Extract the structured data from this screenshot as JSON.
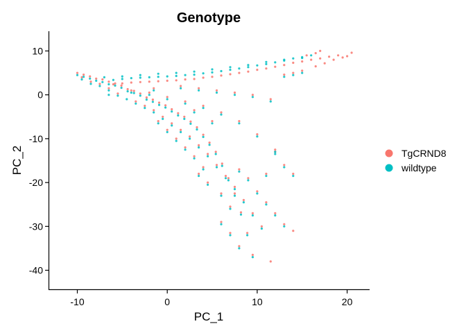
{
  "chart_data": {
    "type": "scatter",
    "title": "Genotype",
    "xlabel": "PC_1",
    "ylabel": "PC_2",
    "xlim": [
      -13.2,
      22.5
    ],
    "ylim": [
      -44.5,
      14.5
    ],
    "xticks": [
      -10,
      0,
      10,
      20
    ],
    "yticks": [
      -40,
      -30,
      -20,
      -10,
      0,
      10
    ],
    "grid": false,
    "legend_position": "right",
    "series": [
      {
        "name": "TgCRND8",
        "color": "#F8766D",
        "points": [
          [
            -10,
            5
          ],
          [
            -9.3,
            4.6
          ],
          [
            -8.6,
            4.2
          ],
          [
            -7.9,
            3.7
          ],
          [
            -7.2,
            3.5
          ],
          [
            -6.5,
            3.0
          ],
          [
            -5.8,
            2.6
          ],
          [
            -5.1,
            2.1
          ],
          [
            -4.4,
            1.3
          ],
          [
            -3.7,
            0.9
          ],
          [
            -3.0,
            0.3
          ],
          [
            -2.3,
            -0.6
          ],
          [
            -1.6,
            -1.1
          ],
          [
            -0.9,
            -1.8
          ],
          [
            -0.2,
            -2.4
          ],
          [
            0.5,
            -3.3
          ],
          [
            1.2,
            -4.2
          ],
          [
            1.9,
            -5.0
          ],
          [
            2.6,
            -6.1
          ],
          [
            3.3,
            -7.4
          ],
          [
            4.0,
            -9.1
          ],
          [
            4.7,
            -10.9
          ],
          [
            5.4,
            -13.0
          ],
          [
            6.1,
            -15.7
          ],
          [
            6.8,
            -19.0
          ],
          [
            7.5,
            -22.5
          ],
          [
            8.2,
            -26.8
          ],
          [
            8.9,
            -31.5
          ],
          [
            -6.0,
            2.4
          ],
          [
            -5.0,
            2.6
          ],
          [
            -4.0,
            2.8
          ],
          [
            -3.0,
            2.9
          ],
          [
            -2.0,
            3.0
          ],
          [
            -1.0,
            3.1
          ],
          [
            0.0,
            3.2
          ],
          [
            1.0,
            3.3
          ],
          [
            2.0,
            3.5
          ],
          [
            3.0,
            3.6
          ],
          [
            4.0,
            3.9
          ],
          [
            5.0,
            4.1
          ],
          [
            6.0,
            4.4
          ],
          [
            7.0,
            4.7
          ],
          [
            8.0,
            5.0
          ],
          [
            9.0,
            5.3
          ],
          [
            10.0,
            5.7
          ],
          [
            11.0,
            6.0
          ],
          [
            12.0,
            6.4
          ],
          [
            13.0,
            6.8
          ],
          [
            14.0,
            7.3
          ],
          [
            15.0,
            7.6
          ],
          [
            16.0,
            8.0
          ],
          [
            17.0,
            8.3
          ],
          [
            18.0,
            8.7
          ],
          [
            19.0,
            9.0
          ],
          [
            20.5,
            9.6
          ],
          [
            -3.5,
            -1.5
          ],
          [
            -2.5,
            -2.5
          ],
          [
            -1.5,
            -3.5
          ],
          [
            -0.5,
            -5.0
          ],
          [
            0.5,
            -6.5
          ],
          [
            1.5,
            -8.0
          ],
          [
            2.5,
            -9.5
          ],
          [
            3.5,
            -11.5
          ],
          [
            4.5,
            -13.5
          ],
          [
            5.5,
            -16.0
          ],
          [
            6.5,
            -18.5
          ],
          [
            7.5,
            -21.0
          ],
          [
            8.5,
            -24.0
          ],
          [
            9.5,
            -27.0
          ],
          [
            10.5,
            -30.0
          ],
          [
            -4.0,
            1.0
          ],
          [
            -2.0,
            0.5
          ],
          [
            0.0,
            -0.5
          ],
          [
            2.0,
            -1.5
          ],
          [
            4.0,
            -2.5
          ],
          [
            6.0,
            -4.0
          ],
          [
            8.0,
            -6.0
          ],
          [
            10.0,
            -9.0
          ],
          [
            12.0,
            -13.0
          ],
          [
            14.0,
            -18.0
          ],
          [
            -5.5,
            0.3
          ],
          [
            -1.5,
            1.5
          ],
          [
            1.5,
            2.0
          ],
          [
            3.5,
            1.5
          ],
          [
            5.5,
            1.0
          ],
          [
            7.5,
            0.5
          ],
          [
            9.5,
            0.0
          ],
          [
            11.5,
            -1.0
          ],
          [
            3.0,
            -3.5
          ],
          [
            5.0,
            -6.0
          ],
          [
            12.0,
            -12.5
          ],
          [
            13.0,
            -16.0
          ],
          [
            6.0,
            -29.0
          ],
          [
            7.0,
            -31.5
          ],
          [
            8.0,
            -34.5
          ],
          [
            9.5,
            -36.5
          ],
          [
            11.5,
            -38.0
          ],
          [
            15.0,
            5.5
          ],
          [
            14.0,
            5.0
          ],
          [
            13.0,
            4.6
          ],
          [
            16.5,
            6.5
          ],
          [
            17.5,
            7.2
          ],
          [
            18.5,
            8.0
          ],
          [
            19.5,
            8.5
          ],
          [
            20.0,
            8.8
          ],
          [
            15.5,
            9.0
          ],
          [
            16.5,
            9.5
          ],
          [
            17.0,
            10.0
          ],
          [
            -8.5,
            3.0
          ],
          [
            -7.5,
            2.5
          ],
          [
            -6.5,
            1.5
          ],
          [
            -9.5,
            4.0
          ],
          [
            2.0,
            -12.0
          ],
          [
            3.0,
            -14.0
          ],
          [
            4.0,
            -16.5
          ],
          [
            0.0,
            -8.0
          ],
          [
            1.0,
            -10.0
          ],
          [
            -1.0,
            -6.0
          ],
          [
            10.0,
            -22.0
          ],
          [
            11.0,
            -24.5
          ],
          [
            12.0,
            -27.0
          ],
          [
            13.0,
            -29.5
          ],
          [
            14.0,
            -31.0
          ],
          [
            7.0,
            -25.5
          ],
          [
            6.0,
            -22.5
          ],
          [
            4.5,
            -20.0
          ],
          [
            3.5,
            -18.0
          ],
          [
            8.0,
            -17.0
          ],
          [
            9.0,
            -19.0
          ],
          [
            11.0,
            -18.0
          ]
        ]
      },
      {
        "name": "wildtype",
        "color": "#00BFC4",
        "points": [
          [
            -10,
            4.5
          ],
          [
            -9.3,
            4.1
          ],
          [
            -8.6,
            3.7
          ],
          [
            -7.9,
            3.2
          ],
          [
            -7.2,
            2.9
          ],
          [
            -6.5,
            2.4
          ],
          [
            -5.8,
            2.1
          ],
          [
            -5.1,
            1.6
          ],
          [
            -4.4,
            0.8
          ],
          [
            -3.7,
            0.4
          ],
          [
            -3.0,
            -0.2
          ],
          [
            -2.3,
            -1.1
          ],
          [
            -1.6,
            -1.6
          ],
          [
            -0.9,
            -2.3
          ],
          [
            -0.2,
            -2.9
          ],
          [
            0.5,
            -3.8
          ],
          [
            1.2,
            -4.7
          ],
          [
            1.9,
            -5.5
          ],
          [
            2.6,
            -6.6
          ],
          [
            3.3,
            -7.9
          ],
          [
            4.0,
            -9.6
          ],
          [
            4.7,
            -11.4
          ],
          [
            5.4,
            -13.5
          ],
          [
            6.1,
            -16.2
          ],
          [
            6.8,
            -19.5
          ],
          [
            7.5,
            -23.0
          ],
          [
            8.2,
            -27.3
          ],
          [
            8.9,
            -32.0
          ],
          [
            -6.0,
            3.4
          ],
          [
            -5.0,
            3.6
          ],
          [
            -4.0,
            3.8
          ],
          [
            -3.0,
            3.9
          ],
          [
            -2.0,
            4.0
          ],
          [
            -1.0,
            4.1
          ],
          [
            0.0,
            4.2
          ],
          [
            1.0,
            4.3
          ],
          [
            2.0,
            4.5
          ],
          [
            3.0,
            4.6
          ],
          [
            4.0,
            4.9
          ],
          [
            5.0,
            5.1
          ],
          [
            6.0,
            5.4
          ],
          [
            7.0,
            5.7
          ],
          [
            8.0,
            6.0
          ],
          [
            9.0,
            6.3
          ],
          [
            10.0,
            6.7
          ],
          [
            11.0,
            7.0
          ],
          [
            12.0,
            7.4
          ],
          [
            13.0,
            7.8
          ],
          [
            14.0,
            8.3
          ],
          [
            15.0,
            8.6
          ],
          [
            16.0,
            9.0
          ],
          [
            -3.5,
            -2.0
          ],
          [
            -2.5,
            -3.0
          ],
          [
            -1.5,
            -4.0
          ],
          [
            -0.5,
            -5.5
          ],
          [
            0.5,
            -7.0
          ],
          [
            1.5,
            -8.5
          ],
          [
            2.5,
            -10.0
          ],
          [
            3.5,
            -12.0
          ],
          [
            4.5,
            -14.0
          ],
          [
            5.5,
            -16.5
          ],
          [
            6.5,
            -19.0
          ],
          [
            7.5,
            -21.5
          ],
          [
            8.5,
            -24.5
          ],
          [
            9.5,
            -27.5
          ],
          [
            10.5,
            -30.5
          ],
          [
            -4.0,
            0.5
          ],
          [
            -2.0,
            0.0
          ],
          [
            0.0,
            -1.0
          ],
          [
            2.0,
            -2.0
          ],
          [
            4.0,
            -3.0
          ],
          [
            6.0,
            -4.5
          ],
          [
            8.0,
            -6.5
          ],
          [
            10.0,
            -9.5
          ],
          [
            12.0,
            -13.5
          ],
          [
            14.0,
            -18.5
          ],
          [
            -5.5,
            -0.2
          ],
          [
            -1.5,
            1.0
          ],
          [
            1.5,
            1.5
          ],
          [
            3.5,
            1.0
          ],
          [
            5.5,
            0.5
          ],
          [
            7.5,
            0.0
          ],
          [
            9.5,
            -0.5
          ],
          [
            11.5,
            -1.5
          ],
          [
            3.0,
            -4.0
          ],
          [
            5.0,
            -6.5
          ],
          [
            12.0,
            -13.0
          ],
          [
            13.0,
            -16.5
          ],
          [
            6.0,
            -29.5
          ],
          [
            7.0,
            -32.0
          ],
          [
            8.0,
            -35.0
          ],
          [
            9.5,
            -37.0
          ],
          [
            15.0,
            5.0
          ],
          [
            14.0,
            4.5
          ],
          [
            13.0,
            4.1
          ],
          [
            -8.5,
            2.5
          ],
          [
            -7.5,
            2.0
          ],
          [
            -6.5,
            1.0
          ],
          [
            -9.5,
            3.5
          ],
          [
            2.0,
            -12.5
          ],
          [
            3.0,
            -14.5
          ],
          [
            4.0,
            -17.0
          ],
          [
            0.0,
            -8.5
          ],
          [
            1.0,
            -10.5
          ],
          [
            -1.0,
            -6.5
          ],
          [
            10.0,
            -22.5
          ],
          [
            11.0,
            -25.0
          ],
          [
            12.0,
            -27.5
          ],
          [
            13.0,
            -30.0
          ],
          [
            7.0,
            -26.0
          ],
          [
            6.0,
            -23.0
          ],
          [
            4.5,
            -20.5
          ],
          [
            3.5,
            -18.5
          ],
          [
            8.0,
            -17.5
          ],
          [
            9.0,
            -19.5
          ],
          [
            11.0,
            -18.5
          ],
          [
            -7.0,
            4.0
          ],
          [
            -5.0,
            4.2
          ],
          [
            -3.0,
            4.5
          ],
          [
            -1.0,
            4.8
          ],
          [
            1.0,
            5.0
          ],
          [
            3.0,
            5.3
          ],
          [
            5.0,
            5.8
          ],
          [
            7.0,
            6.3
          ],
          [
            9.0,
            6.8
          ],
          [
            11.0,
            7.5
          ],
          [
            13.0,
            8.0
          ],
          [
            15.0,
            8.4
          ],
          [
            -6.5,
            0.0
          ],
          [
            -4.5,
            -1.0
          ]
        ]
      }
    ]
  }
}
